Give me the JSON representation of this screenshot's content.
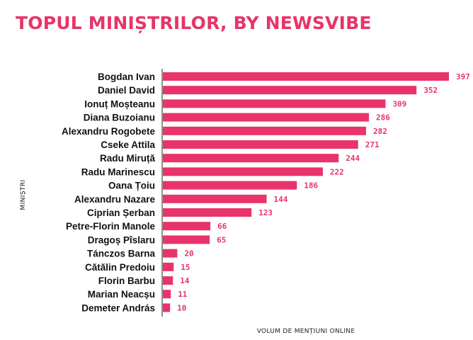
{
  "chart_data": {
    "type": "bar",
    "orientation": "horizontal",
    "title": "TOPUL MINIȘTRILOR, BY NEWSVIBE",
    "xlabel": "VOLUM DE MENȚIUNI ONLINE",
    "ylabel": "MINIȘTRI",
    "categories": [
      "Bogdan Ivan",
      "Daniel David",
      "Ionuț Moșteanu",
      "Diana Buzoianu",
      "Alexandru Rogobete",
      "Cseke Attila",
      "Radu Miruță",
      "Radu Marinescu",
      "Oana Țoiu",
      "Alexandru Nazare",
      "Ciprian Șerban",
      "Petre-Florin Manole",
      "Dragoș Pîslaru",
      "Tánczos Barna",
      "Cătălin Predoiu",
      "Florin Barbu",
      "Marian Neacșu",
      "Demeter András"
    ],
    "values": [
      397,
      352,
      309,
      286,
      282,
      271,
      244,
      222,
      186,
      144,
      123,
      66,
      65,
      20,
      15,
      14,
      11,
      10
    ],
    "xlim": [
      0,
      397
    ],
    "grid": false,
    "legend": "none",
    "bar_color": "#e8336b",
    "label_color": "#e8336b"
  }
}
